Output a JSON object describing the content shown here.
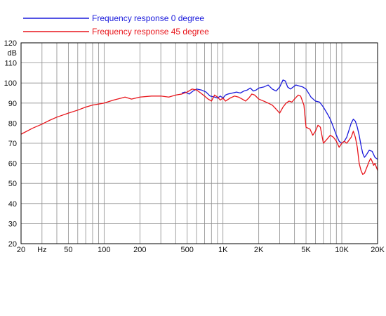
{
  "chart_data": {
    "type": "line",
    "x_scale": "log",
    "x_range": [
      20,
      20000
    ],
    "y_range": [
      20,
      120
    ],
    "y_unit": "dB",
    "grid": true,
    "legend_placement": "top-left",
    "y_ticks": [
      "20",
      "30",
      "40",
      "50",
      "60",
      "70",
      "80",
      "90",
      "100",
      "110",
      "120"
    ],
    "x_ticks": [
      {
        "value": 20,
        "label": "20"
      },
      {
        "value": 30,
        "label": "Hz"
      },
      {
        "value": 50,
        "label": "50"
      },
      {
        "value": 100,
        "label": "100"
      },
      {
        "value": 200,
        "label": "200"
      },
      {
        "value": 500,
        "label": "500"
      },
      {
        "value": 1000,
        "label": "1K"
      },
      {
        "value": 2000,
        "label": "2K"
      },
      {
        "value": 5000,
        "label": "5K"
      },
      {
        "value": 10000,
        "label": "10K"
      },
      {
        "value": 20000,
        "label": "20K"
      }
    ],
    "series": [
      {
        "name": "Frequency response 0 degree",
        "color": "#1a1adc",
        "points": [
          [
            450,
            95.0
          ],
          [
            480,
            95.5
          ],
          [
            520,
            94.5
          ],
          [
            560,
            96.0
          ],
          [
            600,
            97.0
          ],
          [
            660,
            96.5
          ],
          [
            720,
            95.5
          ],
          [
            780,
            93.5
          ],
          [
            850,
            93.0
          ],
          [
            900,
            92.5
          ],
          [
            950,
            93.5
          ],
          [
            1000,
            92.5
          ],
          [
            1050,
            94.0
          ],
          [
            1100,
            94.5
          ],
          [
            1200,
            95.0
          ],
          [
            1300,
            95.5
          ],
          [
            1400,
            95.0
          ],
          [
            1500,
            96.0
          ],
          [
            1600,
            96.5
          ],
          [
            1700,
            97.5
          ],
          [
            1800,
            96.0
          ],
          [
            1900,
            96.5
          ],
          [
            2000,
            97.5
          ],
          [
            2200,
            98.0
          ],
          [
            2400,
            99.0
          ],
          [
            2600,
            97.0
          ],
          [
            2800,
            96.0
          ],
          [
            3000,
            98.0
          ],
          [
            3200,
            101.5
          ],
          [
            3350,
            101.0
          ],
          [
            3500,
            98.0
          ],
          [
            3700,
            97.0
          ],
          [
            3900,
            98.0
          ],
          [
            4100,
            99.0
          ],
          [
            4400,
            98.5
          ],
          [
            4700,
            98.0
          ],
          [
            5000,
            97.0
          ],
          [
            5500,
            93.0
          ],
          [
            6000,
            91.0
          ],
          [
            6500,
            90.5
          ],
          [
            7000,
            88.0
          ],
          [
            7500,
            85.0
          ],
          [
            8000,
            82.0
          ],
          [
            8500,
            78.0
          ],
          [
            9000,
            74.0
          ],
          [
            9500,
            71.0
          ],
          [
            10000,
            70.0
          ],
          [
            10500,
            71.0
          ],
          [
            11000,
            73.0
          ],
          [
            12000,
            80.0
          ],
          [
            12500,
            82.0
          ],
          [
            13000,
            81.0
          ],
          [
            13500,
            78.0
          ],
          [
            14000,
            74.0
          ],
          [
            14500,
            69.0
          ],
          [
            15000,
            65.0
          ],
          [
            15500,
            63.0
          ],
          [
            16000,
            64.0
          ],
          [
            17000,
            66.5
          ],
          [
            18000,
            66.0
          ],
          [
            19000,
            63.0
          ],
          [
            20000,
            62.0
          ]
        ]
      },
      {
        "name": "Frequency response 45 degree",
        "color": "#e8151b",
        "points": [
          [
            20,
            74.5
          ],
          [
            25,
            77.5
          ],
          [
            30,
            79.5
          ],
          [
            35,
            81.5
          ],
          [
            40,
            83.0
          ],
          [
            50,
            85.0
          ],
          [
            60,
            86.5
          ],
          [
            70,
            88.0
          ],
          [
            80,
            89.0
          ],
          [
            100,
            90.0
          ],
          [
            120,
            91.5
          ],
          [
            140,
            92.5
          ],
          [
            150,
            93.0
          ],
          [
            170,
            92.0
          ],
          [
            200,
            93.0
          ],
          [
            250,
            93.5
          ],
          [
            300,
            93.5
          ],
          [
            350,
            93.0
          ],
          [
            400,
            94.0
          ],
          [
            450,
            94.5
          ],
          [
            500,
            95.5
          ],
          [
            550,
            97.0
          ],
          [
            600,
            96.5
          ],
          [
            650,
            95.0
          ],
          [
            700,
            93.5
          ],
          [
            750,
            92.0
          ],
          [
            800,
            91.0
          ],
          [
            850,
            94.0
          ],
          [
            900,
            93.0
          ],
          [
            950,
            91.5
          ],
          [
            1000,
            92.5
          ],
          [
            1050,
            91.0
          ],
          [
            1150,
            92.5
          ],
          [
            1250,
            93.5
          ],
          [
            1350,
            93.0
          ],
          [
            1450,
            92.0
          ],
          [
            1550,
            91.0
          ],
          [
            1650,
            92.5
          ],
          [
            1750,
            94.5
          ],
          [
            1850,
            94.0
          ],
          [
            2000,
            92.0
          ],
          [
            2200,
            91.0
          ],
          [
            2400,
            90.0
          ],
          [
            2600,
            89.0
          ],
          [
            2800,
            87.0
          ],
          [
            3000,
            85.0
          ],
          [
            3200,
            88.0
          ],
          [
            3400,
            90.0
          ],
          [
            3600,
            91.0
          ],
          [
            3800,
            90.5
          ],
          [
            4000,
            92.0
          ],
          [
            4300,
            94.0
          ],
          [
            4500,
            93.5
          ],
          [
            4800,
            89.0
          ],
          [
            5000,
            78.0
          ],
          [
            5400,
            77.0
          ],
          [
            5700,
            74.0
          ],
          [
            6000,
            76.0
          ],
          [
            6300,
            79.0
          ],
          [
            6600,
            78.0
          ],
          [
            7000,
            70.0
          ],
          [
            7500,
            72.0
          ],
          [
            8000,
            74.0
          ],
          [
            8500,
            73.0
          ],
          [
            9000,
            71.0
          ],
          [
            9500,
            68.0
          ],
          [
            10000,
            70.0
          ],
          [
            10500,
            71.0
          ],
          [
            11000,
            70.0
          ],
          [
            12000,
            73.0
          ],
          [
            12500,
            76.0
          ],
          [
            13000,
            73.0
          ],
          [
            13500,
            68.0
          ],
          [
            14000,
            60.0
          ],
          [
            14500,
            56.5
          ],
          [
            15000,
            54.5
          ],
          [
            15500,
            55.0
          ],
          [
            16000,
            57.0
          ],
          [
            17000,
            61.0
          ],
          [
            17500,
            62.5
          ],
          [
            18000,
            61.0
          ],
          [
            18500,
            59.0
          ],
          [
            19000,
            60.0
          ],
          [
            20000,
            56.5
          ]
        ]
      }
    ]
  }
}
